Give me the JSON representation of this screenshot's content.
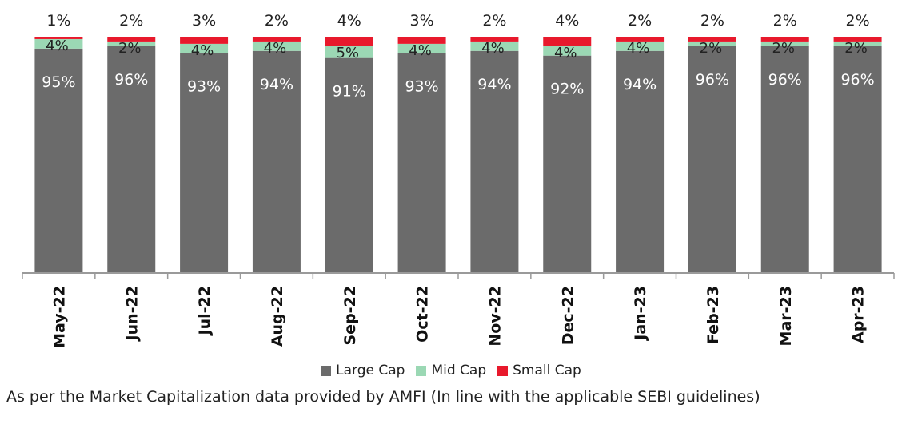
{
  "chart_data": {
    "type": "bar",
    "stacked": true,
    "categories": [
      "May-22",
      "Jun-22",
      "Jul-22",
      "Aug-22",
      "Sep-22",
      "Oct-22",
      "Nov-22",
      "Dec-22",
      "Jan-23",
      "Feb-23",
      "Mar-23",
      "Apr-23"
    ],
    "series": [
      {
        "name": "Large Cap",
        "color": "#6b6b6b",
        "values": [
          95,
          96,
          93,
          94,
          91,
          93,
          94,
          92,
          94,
          96,
          96,
          96
        ],
        "labels": [
          "95%",
          "96%",
          "93%",
          "94%",
          "91%",
          "93%",
          "94%",
          "92%",
          "94%",
          "96%",
          "96%",
          "96%"
        ]
      },
      {
        "name": "Mid Cap",
        "color": "#9bd8b4",
        "values": [
          4,
          2,
          4,
          4,
          5,
          4,
          4,
          4,
          4,
          2,
          2,
          2
        ],
        "labels": [
          "4%",
          "2%",
          "4%",
          "4%",
          "5%",
          "4%",
          "4%",
          "4%",
          "4%",
          "2%",
          "2%",
          "2%"
        ]
      },
      {
        "name": "Small Cap",
        "color": "#e8192c",
        "values": [
          1,
          2,
          3,
          2,
          4,
          3,
          2,
          4,
          2,
          2,
          2,
          2
        ],
        "labels": [
          "1%",
          "2%",
          "3%",
          "2%",
          "4%",
          "3%",
          "2%",
          "4%",
          "2%",
          "2%",
          "2%",
          "2%"
        ]
      }
    ],
    "ylim": [
      0,
      100
    ],
    "grid": false,
    "legend_position": "bottom"
  },
  "footnote": "As per the Market Capitalization data provided by AMFI (In line with the applicable SEBI guidelines)"
}
